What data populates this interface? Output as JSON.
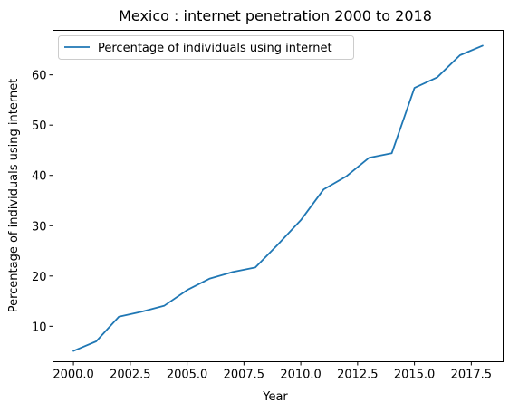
{
  "chart_data": {
    "type": "line",
    "title": "Mexico : internet penetration 2000 to 2018",
    "xlabel": "Year",
    "ylabel": "Percentage of individuals using internet",
    "xlim": [
      1999.1,
      2018.9
    ],
    "ylim": [
      2.95,
      68.85
    ],
    "x_ticks": [
      2000.0,
      2002.5,
      2005.0,
      2007.5,
      2010.0,
      2012.5,
      2015.0,
      2017.5
    ],
    "x_tick_labels": [
      "2000.0",
      "2002.5",
      "2005.0",
      "2007.5",
      "2010.0",
      "2012.5",
      "2015.0",
      "2017.5"
    ],
    "y_ticks": [
      10,
      20,
      30,
      40,
      50,
      60
    ],
    "y_tick_labels": [
      "10",
      "20",
      "30",
      "40",
      "50",
      "60"
    ],
    "grid": false,
    "legend_position": "top-left",
    "color": "#1f77b4",
    "series": [
      {
        "name": "Percentage of individuals using internet",
        "x": [
          2000,
          2001,
          2002,
          2003,
          2004,
          2005,
          2006,
          2007,
          2008,
          2009,
          2010,
          2011,
          2012,
          2013,
          2014,
          2015,
          2016,
          2017,
          2018
        ],
        "values": [
          5.1,
          7.0,
          11.9,
          12.9,
          14.1,
          17.2,
          19.5,
          20.8,
          21.7,
          26.3,
          31.1,
          37.2,
          39.8,
          43.5,
          44.4,
          57.4,
          59.5,
          63.9,
          65.8
        ]
      }
    ]
  }
}
